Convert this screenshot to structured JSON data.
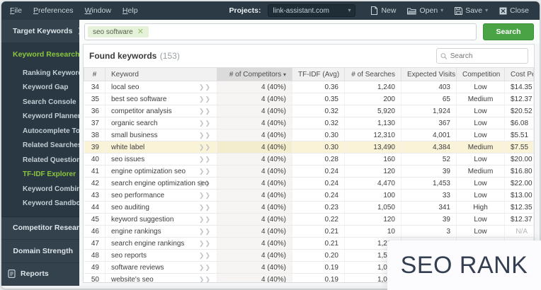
{
  "menubar": {
    "menus": [
      {
        "label": "File"
      },
      {
        "label": "Preferences"
      },
      {
        "label": "Window"
      },
      {
        "label": "Help"
      }
    ],
    "projects_label": "Projects:",
    "project_name": "link-assistant.com",
    "buttons": [
      {
        "label": "New"
      },
      {
        "label": "Open",
        "has_dropdown": true
      },
      {
        "label": "Save",
        "has_dropdown": true
      },
      {
        "label": "Close"
      }
    ]
  },
  "toolbar": {
    "tag": "seo software",
    "search_button": "Search"
  },
  "sidebar": {
    "target": {
      "label": "Target Keywords"
    },
    "research": {
      "label": "Keyword Research",
      "items": [
        {
          "label": "Ranking Keywords"
        },
        {
          "label": "Keyword Gap"
        },
        {
          "label": "Search Console"
        },
        {
          "label": "Keyword Planner"
        },
        {
          "label": "Autocomplete Tools"
        },
        {
          "label": "Related Searches"
        },
        {
          "label": "Related Questions"
        },
        {
          "label": "TF-IDF Explorer",
          "active": true
        },
        {
          "label": "Keyword Combinations"
        },
        {
          "label": "Keyword Sandbox"
        }
      ]
    },
    "competitor": {
      "label": "Competitor Research"
    },
    "domain": {
      "label": "Domain Strength"
    },
    "reports": {
      "label": "Reports"
    }
  },
  "panel": {
    "title": "Found keywords",
    "count_label": "(153)",
    "search_placeholder": "Search"
  },
  "table": {
    "columns": [
      {
        "label": "#"
      },
      {
        "label": "Keyword"
      },
      {
        "label": "# of Competitors",
        "sorted": "desc"
      },
      {
        "label": "TF-IDF (Avg)"
      },
      {
        "label": "# of Searches"
      },
      {
        "label": "Expected Visits"
      },
      {
        "label": "Competition"
      },
      {
        "label": "Cost Per Click"
      }
    ],
    "rows": [
      {
        "num": "34",
        "keyword": "local seo",
        "competitors": "4 (40%)",
        "tfidf": "0.36",
        "searches": "1,240",
        "visits": "403",
        "competition": "Low",
        "cpc": "$14.35"
      },
      {
        "num": "35",
        "keyword": "best seo software",
        "competitors": "4 (40%)",
        "tfidf": "0.35",
        "searches": "200",
        "visits": "65",
        "competition": "Medium",
        "cpc": "$12.37"
      },
      {
        "num": "36",
        "keyword": "competitor analysis",
        "competitors": "4 (40%)",
        "tfidf": "0.32",
        "searches": "5,920",
        "visits": "1,924",
        "competition": "Low",
        "cpc": "$20.52"
      },
      {
        "num": "37",
        "keyword": "organic search",
        "competitors": "4 (40%)",
        "tfidf": "0.32",
        "searches": "1,130",
        "visits": "367",
        "competition": "Low",
        "cpc": "$6.08"
      },
      {
        "num": "38",
        "keyword": "small business",
        "competitors": "4 (40%)",
        "tfidf": "0.30",
        "searches": "12,310",
        "visits": "4,001",
        "competition": "Low",
        "cpc": "$5.51"
      },
      {
        "num": "39",
        "keyword": "white label",
        "competitors": "4 (40%)",
        "tfidf": "0.30",
        "searches": "13,490",
        "visits": "4,384",
        "competition": "Medium",
        "cpc": "$7.55",
        "highlight": true
      },
      {
        "num": "40",
        "keyword": "seo issues",
        "competitors": "4 (40%)",
        "tfidf": "0.28",
        "searches": "160",
        "visits": "52",
        "competition": "Low",
        "cpc": "$20.00"
      },
      {
        "num": "41",
        "keyword": "engine optimization seo",
        "competitors": "4 (40%)",
        "tfidf": "0.24",
        "searches": "120",
        "visits": "39",
        "competition": "Medium",
        "cpc": "$16.80"
      },
      {
        "num": "42",
        "keyword": "search engine optimization seo",
        "competitors": "4 (40%)",
        "tfidf": "0.24",
        "searches": "4,470",
        "visits": "1,453",
        "competition": "Low",
        "cpc": "$22.00"
      },
      {
        "num": "43",
        "keyword": "seo performance",
        "competitors": "4 (40%)",
        "tfidf": "0.24",
        "searches": "100",
        "visits": "33",
        "competition": "Low",
        "cpc": "$13.00"
      },
      {
        "num": "44",
        "keyword": "seo auditing",
        "competitors": "4 (40%)",
        "tfidf": "0.23",
        "searches": "1,050",
        "visits": "341",
        "competition": "High",
        "cpc": "$12.35"
      },
      {
        "num": "45",
        "keyword": "keyword suggestion",
        "competitors": "4 (40%)",
        "tfidf": "0.22",
        "searches": "120",
        "visits": "39",
        "competition": "Low",
        "cpc": "$12.37"
      },
      {
        "num": "46",
        "keyword": "engine rankings",
        "competitors": "4 (40%)",
        "tfidf": "0.21",
        "searches": "10",
        "visits": "3",
        "competition": "Low",
        "cpc": "N/A"
      },
      {
        "num": "47",
        "keyword": "search engine rankings",
        "competitors": "4 (40%)",
        "tfidf": "0.21",
        "searches": "1,210",
        "visits": "",
        "competition": "",
        "cpc": ""
      },
      {
        "num": "48",
        "keyword": "seo reports",
        "competitors": "4 (40%)",
        "tfidf": "0.20",
        "searches": "1,560",
        "visits": "",
        "competition": "",
        "cpc": ""
      },
      {
        "num": "49",
        "keyword": "software reviews",
        "competitors": "4 (40%)",
        "tfidf": "0.19",
        "searches": "1,000",
        "visits": "",
        "competition": "",
        "cpc": ""
      },
      {
        "num": "50",
        "keyword": "website's seo",
        "competitors": "4 (40%)",
        "tfidf": "0.19",
        "searches": "1,000",
        "visits": "",
        "competition": "",
        "cpc": ""
      }
    ]
  },
  "overlay": {
    "text": "SEO RANK"
  },
  "colors": {
    "accent_green": "#8cc63e",
    "button_green": "#4aa446",
    "row_highlight": "#faf3d8",
    "topbar": "#2c3a45",
    "sidebar": "#34424e",
    "sidebar_section": "#2a3843"
  }
}
